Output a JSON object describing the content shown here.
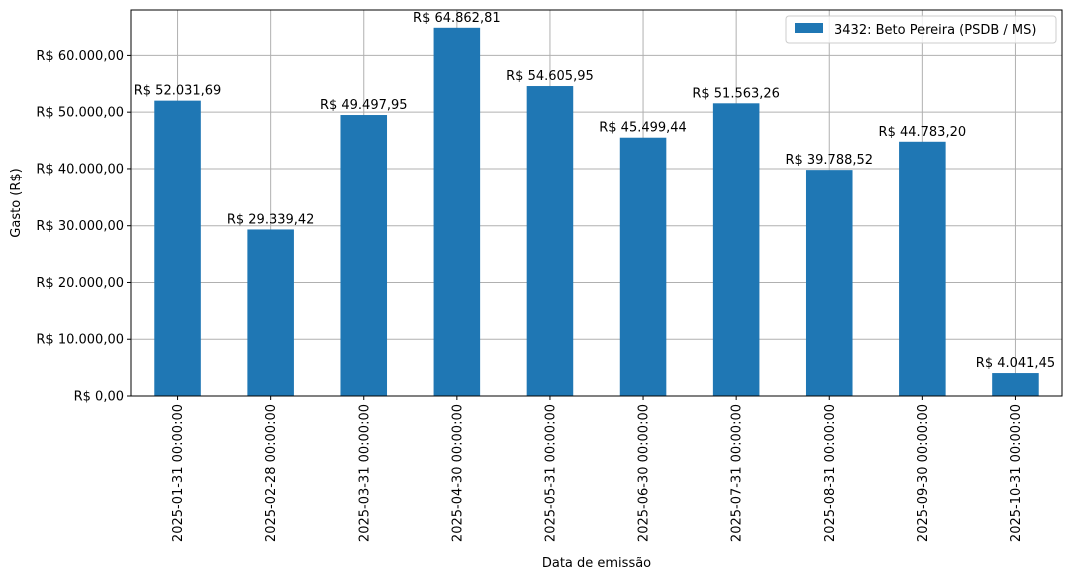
{
  "chart_data": {
    "type": "bar",
    "xlabel": "Data de emissão",
    "ylabel": "Gasto (R$)",
    "ylim": [
      0,
      68000
    ],
    "grid": true,
    "legend_position": "top-right",
    "categories": [
      "2025-01-31 00:00:00",
      "2025-02-28 00:00:00",
      "2025-03-31 00:00:00",
      "2025-04-30 00:00:00",
      "2025-05-31 00:00:00",
      "2025-06-30 00:00:00",
      "2025-07-31 00:00:00",
      "2025-08-31 00:00:00",
      "2025-09-30 00:00:00",
      "2025-10-31 00:00:00"
    ],
    "series": [
      {
        "name": "3432: Beto Pereira (PSDB / MS)",
        "color": "#1f77b4",
        "values": [
          52031.69,
          29339.42,
          49497.95,
          64862.81,
          54605.95,
          45499.44,
          51563.26,
          39788.52,
          44783.2,
          4041.45
        ],
        "labels": [
          "R$ 52.031,69",
          "R$ 29.339,42",
          "R$ 49.497,95",
          "R$ 64.862,81",
          "R$ 54.605,95",
          "R$ 45.499,44",
          "R$ 51.563,26",
          "R$ 39.788,52",
          "R$ 44.783,20",
          "R$ 4.041,45"
        ]
      }
    ],
    "yticks": [
      0,
      10000,
      20000,
      30000,
      40000,
      50000,
      60000
    ],
    "ytick_labels": [
      "R$ 0,00",
      "R$ 10.000,00",
      "R$ 20.000,00",
      "R$ 30.000,00",
      "R$ 40.000,00",
      "R$ 50.000,00",
      "R$ 60.000,00"
    ]
  }
}
